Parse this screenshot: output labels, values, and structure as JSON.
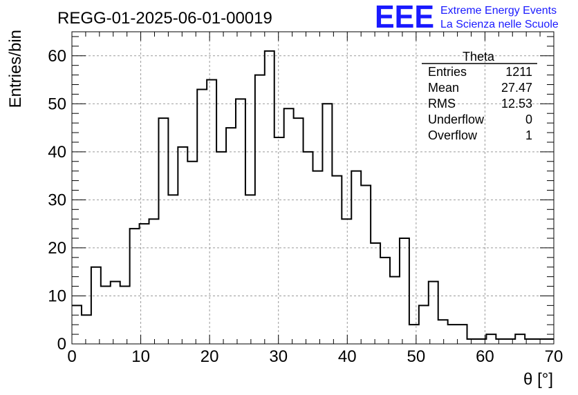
{
  "header": {
    "run_title": "REGG-01-2025-06-01-00019",
    "logo_text": "EEE",
    "logo_line1": "Extreme Energy Events",
    "logo_line2": "La Scienza nelle Scuole",
    "logo_color": "#1a1aff"
  },
  "stats_box": {
    "name": "Theta",
    "rows": [
      {
        "label": "Entries",
        "value": "1211"
      },
      {
        "label": "Mean",
        "value": "27.47"
      },
      {
        "label": "RMS",
        "value": "12.53"
      },
      {
        "label": "Underflow",
        "value": "0"
      },
      {
        "label": "Overflow",
        "value": "1"
      }
    ]
  },
  "chart_data": {
    "type": "histogram",
    "title": "REGG-01-2025-06-01-00019",
    "xlabel": "θ [°]",
    "ylabel": "Entries/bin",
    "xlim": [
      0,
      70
    ],
    "ylim": [
      0,
      65
    ],
    "bin_width": 1.4,
    "x_ticks": [
      "0",
      "10",
      "20",
      "30",
      "40",
      "50",
      "60",
      "70"
    ],
    "y_ticks": [
      "0",
      "10",
      "20",
      "30",
      "40",
      "50",
      "60"
    ],
    "grid": true,
    "line_color": "#000000",
    "values": [
      8,
      6,
      16,
      12,
      13,
      12,
      24,
      25,
      26,
      47,
      31,
      41,
      38,
      53,
      55,
      40,
      45,
      51,
      31,
      56,
      61,
      43,
      49,
      47,
      40,
      36,
      50,
      35,
      26,
      36,
      33,
      21,
      18,
      14,
      22,
      4,
      8,
      13,
      5,
      4,
      4,
      1,
      1,
      2,
      1,
      1,
      2,
      1,
      1,
      1
    ]
  }
}
